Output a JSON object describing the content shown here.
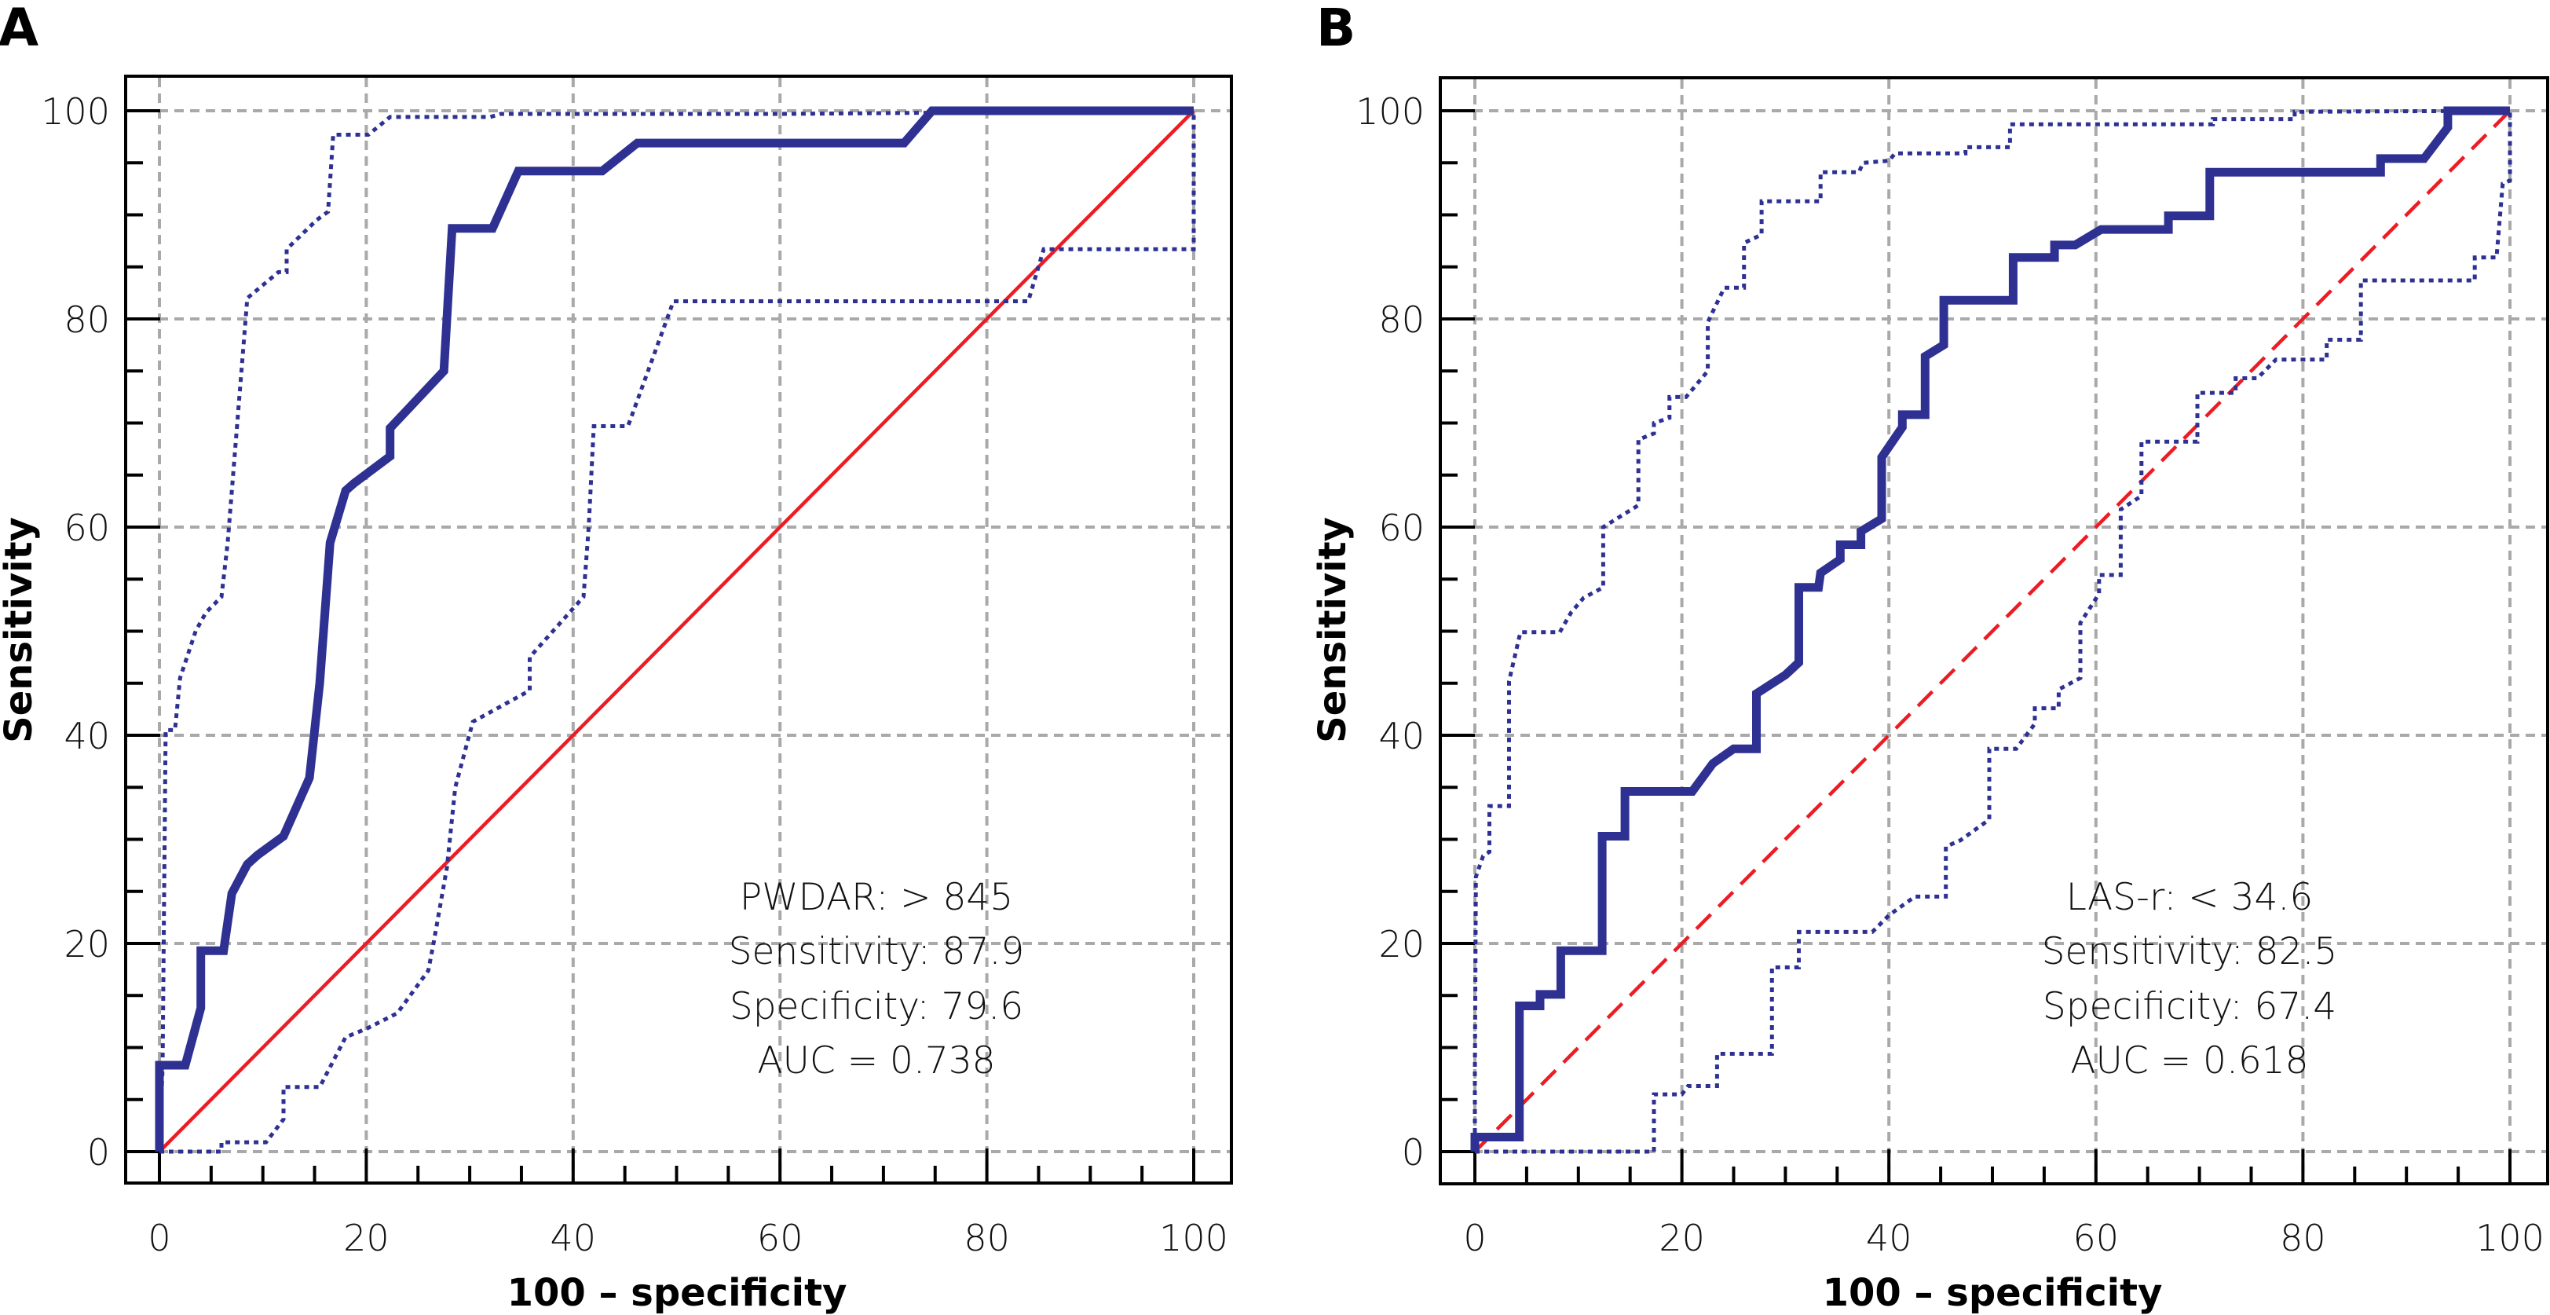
{
  "chart_data": [
    {
      "type": "line",
      "panel_label": "A",
      "title": "",
      "xlabel": "100 – specificity",
      "ylabel": "Sensitivity",
      "xlim": [
        0,
        100
      ],
      "ylim": [
        0,
        100
      ],
      "xticks": [
        0,
        20,
        40,
        60,
        80,
        100
      ],
      "yticks": [
        0,
        20,
        40,
        60,
        80,
        100
      ],
      "minor_tick_step": 5,
      "grid": true,
      "colors": {
        "roc": "#2e3192",
        "ci": "#2e3192",
        "reference": "#ed1c24",
        "grid": "#a9a9a9"
      },
      "reference_line": {
        "style": "solid",
        "x": [
          0,
          100
        ],
        "y": [
          0,
          100
        ]
      },
      "annotation": [
        "PWDAR: > 845",
        "Sensitivity: 87.9",
        "Specificity: 79.6",
        "AUC = 0.738"
      ],
      "annotation_values": {
        "criterion": "> 845",
        "sensitivity": 87.9,
        "specificity": 79.6,
        "auc": 0.738
      },
      "series": [
        {
          "name": "ROC curve",
          "style": "solid-thick",
          "x": [
            0,
            0,
            2.5,
            4,
            4,
            6.2,
            7,
            8.5,
            9.5,
            12,
            14.5,
            15.5,
            16.5,
            18,
            18.8,
            22.3,
            22.3,
            27.5,
            28.3,
            32.2,
            34.7,
            42.8,
            46.2,
            72,
            74.7,
            100
          ],
          "y": [
            0,
            8.3,
            8.3,
            13.8,
            19.3,
            19.3,
            24.8,
            27.6,
            28.5,
            30.3,
            35.9,
            45,
            58.5,
            63.5,
            64.2,
            66.8,
            69.5,
            75,
            88.7,
            88.7,
            94.2,
            94.2,
            96.9,
            96.9,
            100,
            100
          ]
        },
        {
          "name": "Upper 95% CI",
          "style": "dotted",
          "x": [
            0,
            0.3,
            0.6,
            1.5,
            2,
            3.5,
            4.5,
            6,
            6.6,
            8.5,
            11.5,
            12.3,
            12.3,
            15.2,
            16.3,
            16.8,
            19.5,
            20.2,
            22.3,
            32,
            33,
            60,
            100
          ],
          "y": [
            0,
            8,
            40.5,
            40.5,
            45.5,
            50,
            51.8,
            53.3,
            58.5,
            82,
            84.5,
            84.5,
            86.7,
            89.5,
            90.3,
            97.7,
            97.7,
            97.7,
            99.4,
            99.4,
            99.7,
            99.7,
            100
          ]
        },
        {
          "name": "Lower 95% CI",
          "style": "dotted",
          "x": [
            0,
            6,
            6,
            10.3,
            12,
            12,
            15.5,
            18,
            20,
            23,
            26,
            26.5,
            27.8,
            28.6,
            30.3,
            35.8,
            35.8,
            41,
            41.5,
            42,
            45.3,
            49.7,
            84,
            85.5,
            100,
            100
          ],
          "y": [
            0,
            0,
            0.9,
            0.9,
            3.1,
            6.2,
            6.2,
            11,
            11.8,
            13.3,
            17.4,
            20,
            27.3,
            35,
            41.3,
            44.3,
            47.5,
            53.3,
            60,
            69.7,
            69.7,
            81.7,
            81.7,
            86.7,
            86.7,
            100
          ]
        }
      ]
    },
    {
      "type": "line",
      "panel_label": "B",
      "title": "",
      "xlabel": "100 – specificity",
      "ylabel": "Sensitivity",
      "xlim": [
        0,
        100
      ],
      "ylim": [
        0,
        100
      ],
      "xticks": [
        0,
        20,
        40,
        60,
        80,
        100
      ],
      "yticks": [
        0,
        20,
        40,
        60,
        80,
        100
      ],
      "minor_tick_step": 5,
      "grid": true,
      "colors": {
        "roc": "#2e3192",
        "ci": "#2e3192",
        "reference": "#ed1c24",
        "grid": "#a9a9a9"
      },
      "reference_line": {
        "style": "dashed",
        "x": [
          0,
          100
        ],
        "y": [
          0,
          100
        ]
      },
      "annotation": [
        "LAS-r: < 34.6",
        "Sensitivity: 82.5",
        "Specificity: 67.4",
        "AUC = 0.618"
      ],
      "annotation_values": {
        "criterion": "< 34.6",
        "sensitivity": 82.5,
        "specificity": 67.4,
        "auc": 0.618
      },
      "series": [
        {
          "name": "ROC curve",
          "style": "solid-thick",
          "x": [
            0,
            0,
            4.3,
            4.3,
            6.3,
            6.3,
            8.3,
            8.3,
            12.3,
            12.3,
            14.5,
            14.5,
            21,
            23,
            25,
            27.2,
            27.2,
            30,
            31.3,
            31.3,
            33.2,
            33.4,
            35.3,
            35.3,
            37.3,
            37.3,
            39.3,
            39.3,
            41.3,
            41.3,
            43.5,
            43.5,
            45.3,
            45.3,
            52,
            52,
            56,
            56,
            58,
            60.5,
            67,
            67,
            71,
            71,
            87.5,
            87.5,
            91.7,
            94,
            94,
            100
          ],
          "y": [
            0,
            1.4,
            1.4,
            14,
            14,
            15.1,
            15.1,
            19.3,
            19.3,
            30.3,
            30.3,
            34.6,
            34.6,
            37.3,
            38.7,
            38.7,
            44,
            45.8,
            47,
            54.2,
            54.2,
            55.6,
            56.9,
            58.3,
            58.3,
            59.6,
            60.8,
            66.7,
            69.6,
            70.8,
            70.8,
            76.4,
            77.5,
            81.8,
            81.8,
            85.9,
            85.9,
            87.1,
            87.1,
            88.6,
            88.6,
            89.9,
            89.9,
            94.1,
            94.1,
            95.4,
            95.4,
            98.4,
            100,
            100
          ]
        },
        {
          "name": "Upper 95% CI",
          "style": "dotted",
          "x": [
            0,
            0,
            0.1,
            0.8,
            1.4,
            1.4,
            3.3,
            3.3,
            4.4,
            8.2,
            9.3,
            10.5,
            12.4,
            12.4,
            15.8,
            15.8,
            17.3,
            17.3,
            18.8,
            18.8,
            20.4,
            22.5,
            22.5,
            24.1,
            26,
            26,
            27.7,
            27.7,
            33.4,
            33.4,
            37.1,
            37.5,
            40,
            40.6,
            47.4,
            47.4,
            51.7,
            51.7,
            71.3,
            71.3,
            79.2,
            79.2,
            100
          ],
          "y": [
            0,
            7.5,
            26.4,
            28.4,
            28.8,
            33.2,
            33.2,
            45.2,
            49.9,
            49.9,
            51.8,
            53.2,
            54.2,
            60,
            62.1,
            68.4,
            69,
            70,
            70.5,
            72.5,
            72.5,
            75,
            79.7,
            83,
            83,
            87.3,
            88.1,
            91.3,
            91.3,
            94.1,
            94.1,
            95,
            95.2,
            95.9,
            95.9,
            96.5,
            96.5,
            98.7,
            98.7,
            99.2,
            99.2,
            99.9,
            100
          ]
        },
        {
          "name": "Lower 95% CI",
          "style": "dotted",
          "x": [
            0,
            17.3,
            17.3,
            20,
            20.6,
            23.4,
            23.4,
            28.7,
            28.7,
            31.3,
            31.3,
            38.4,
            40,
            42.5,
            45.5,
            45.5,
            46.9,
            49.7,
            49.7,
            52.3,
            54.1,
            54.1,
            56.4,
            56.4,
            58.5,
            58.5,
            60.3,
            60.3,
            62.4,
            62.4,
            64.4,
            64.4,
            69.8,
            69.8,
            73.5,
            73.5,
            75.6,
            77.4,
            82.3,
            82.3,
            85.6,
            85.6,
            96.6,
            96.6,
            98.7,
            99.3,
            100,
            100
          ],
          "y": [
            0,
            0,
            5.5,
            5.5,
            6.3,
            6.3,
            9.4,
            9.4,
            17.7,
            17.7,
            21.1,
            21.1,
            22.7,
            24.5,
            24.5,
            29.3,
            29.9,
            31.9,
            38.7,
            38.7,
            41.1,
            42.6,
            42.6,
            44.4,
            45.5,
            50.8,
            53.6,
            55.4,
            55.4,
            61.7,
            63,
            68.2,
            68.2,
            72.9,
            72.9,
            74.3,
            74.3,
            76.1,
            76.1,
            78,
            78,
            83.7,
            83.7,
            85.9,
            85.9,
            93,
            93.3,
            100
          ]
        }
      ]
    }
  ]
}
